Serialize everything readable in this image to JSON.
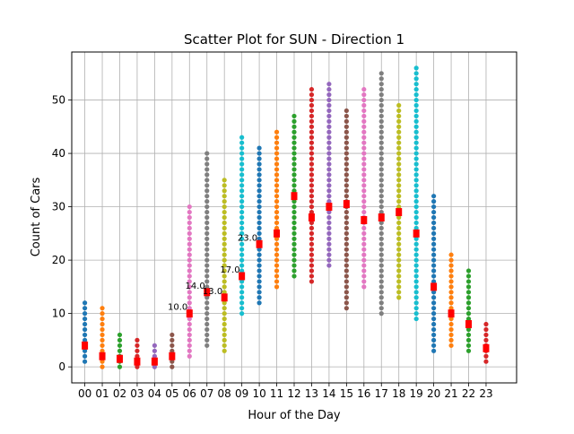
{
  "chart_data": {
    "type": "scatter",
    "title": "Scatter Plot for SUN - Direction 1",
    "xlabel": "Hour of the Day",
    "ylabel": "Count of Cars",
    "categories": [
      "00",
      "01",
      "02",
      "03",
      "04",
      "05",
      "06",
      "07",
      "08",
      "09",
      "10",
      "11",
      "12",
      "13",
      "14",
      "15",
      "16",
      "17",
      "18",
      "19",
      "20",
      "21",
      "22",
      "23"
    ],
    "ylim": [
      -3,
      59
    ],
    "yticks": [
      0,
      10,
      20,
      30,
      40,
      50
    ],
    "grid": true,
    "colors": [
      "#1f77b4",
      "#ff7f0e",
      "#2ca02c",
      "#d62728",
      "#9467bd",
      "#8c564b",
      "#e377c2",
      "#7f7f7f",
      "#bcbd22",
      "#17becf",
      "#1f77b4",
      "#ff7f0e",
      "#2ca02c",
      "#d62728",
      "#9467bd",
      "#8c564b",
      "#e377c2",
      "#7f7f7f",
      "#bcbd22",
      "#17becf",
      "#1f77b4",
      "#ff7f0e",
      "#2ca02c",
      "#d62728"
    ],
    "median_color": "#ff0000",
    "series": [
      {
        "hour": "00",
        "min": 1,
        "max": 12,
        "median": 4
      },
      {
        "hour": "01",
        "min": 0,
        "max": 11,
        "median": 2
      },
      {
        "hour": "02",
        "min": 0,
        "max": 6,
        "median": 1.5
      },
      {
        "hour": "03",
        "min": 0,
        "max": 5,
        "median": 1
      },
      {
        "hour": "04",
        "min": 0,
        "max": 4,
        "median": 1
      },
      {
        "hour": "05",
        "min": 0,
        "max": 6,
        "median": 2
      },
      {
        "hour": "06",
        "min": 2,
        "max": 30,
        "median": 10
      },
      {
        "hour": "07",
        "min": 4,
        "max": 40,
        "median": 14
      },
      {
        "hour": "08",
        "min": 3,
        "max": 35,
        "median": 13
      },
      {
        "hour": "09",
        "min": 10,
        "max": 43,
        "median": 17
      },
      {
        "hour": "10",
        "min": 12,
        "max": 41,
        "median": 23
      },
      {
        "hour": "11",
        "min": 15,
        "max": 44,
        "median": 25
      },
      {
        "hour": "12",
        "min": 17,
        "max": 47,
        "median": 32
      },
      {
        "hour": "13",
        "min": 16,
        "max": 52,
        "median": 28
      },
      {
        "hour": "14",
        "min": 19,
        "max": 53,
        "median": 30
      },
      {
        "hour": "15",
        "min": 11,
        "max": 48,
        "median": 30.5
      },
      {
        "hour": "16",
        "min": 15,
        "max": 52,
        "median": 27.5
      },
      {
        "hour": "17",
        "min": 10,
        "max": 55,
        "median": 28
      },
      {
        "hour": "18",
        "min": 13,
        "max": 49,
        "median": 29
      },
      {
        "hour": "19",
        "min": 9,
        "max": 56,
        "median": 25
      },
      {
        "hour": "20",
        "min": 3,
        "max": 32,
        "median": 15
      },
      {
        "hour": "21",
        "min": 4,
        "max": 21,
        "median": 10
      },
      {
        "hour": "22",
        "min": 3,
        "max": 18,
        "median": 8
      },
      {
        "hour": "23",
        "min": 1,
        "max": 8,
        "median": 3.5
      }
    ],
    "annotations": [
      {
        "hour": "06",
        "y": 10,
        "text": "10.0"
      },
      {
        "hour": "07",
        "y": 14,
        "text": "14.0"
      },
      {
        "hour": "08",
        "y": 13,
        "text": "13.0"
      },
      {
        "hour": "09",
        "y": 17,
        "text": "17.0"
      },
      {
        "hour": "10",
        "y": 23,
        "text": "23.0"
      }
    ]
  }
}
